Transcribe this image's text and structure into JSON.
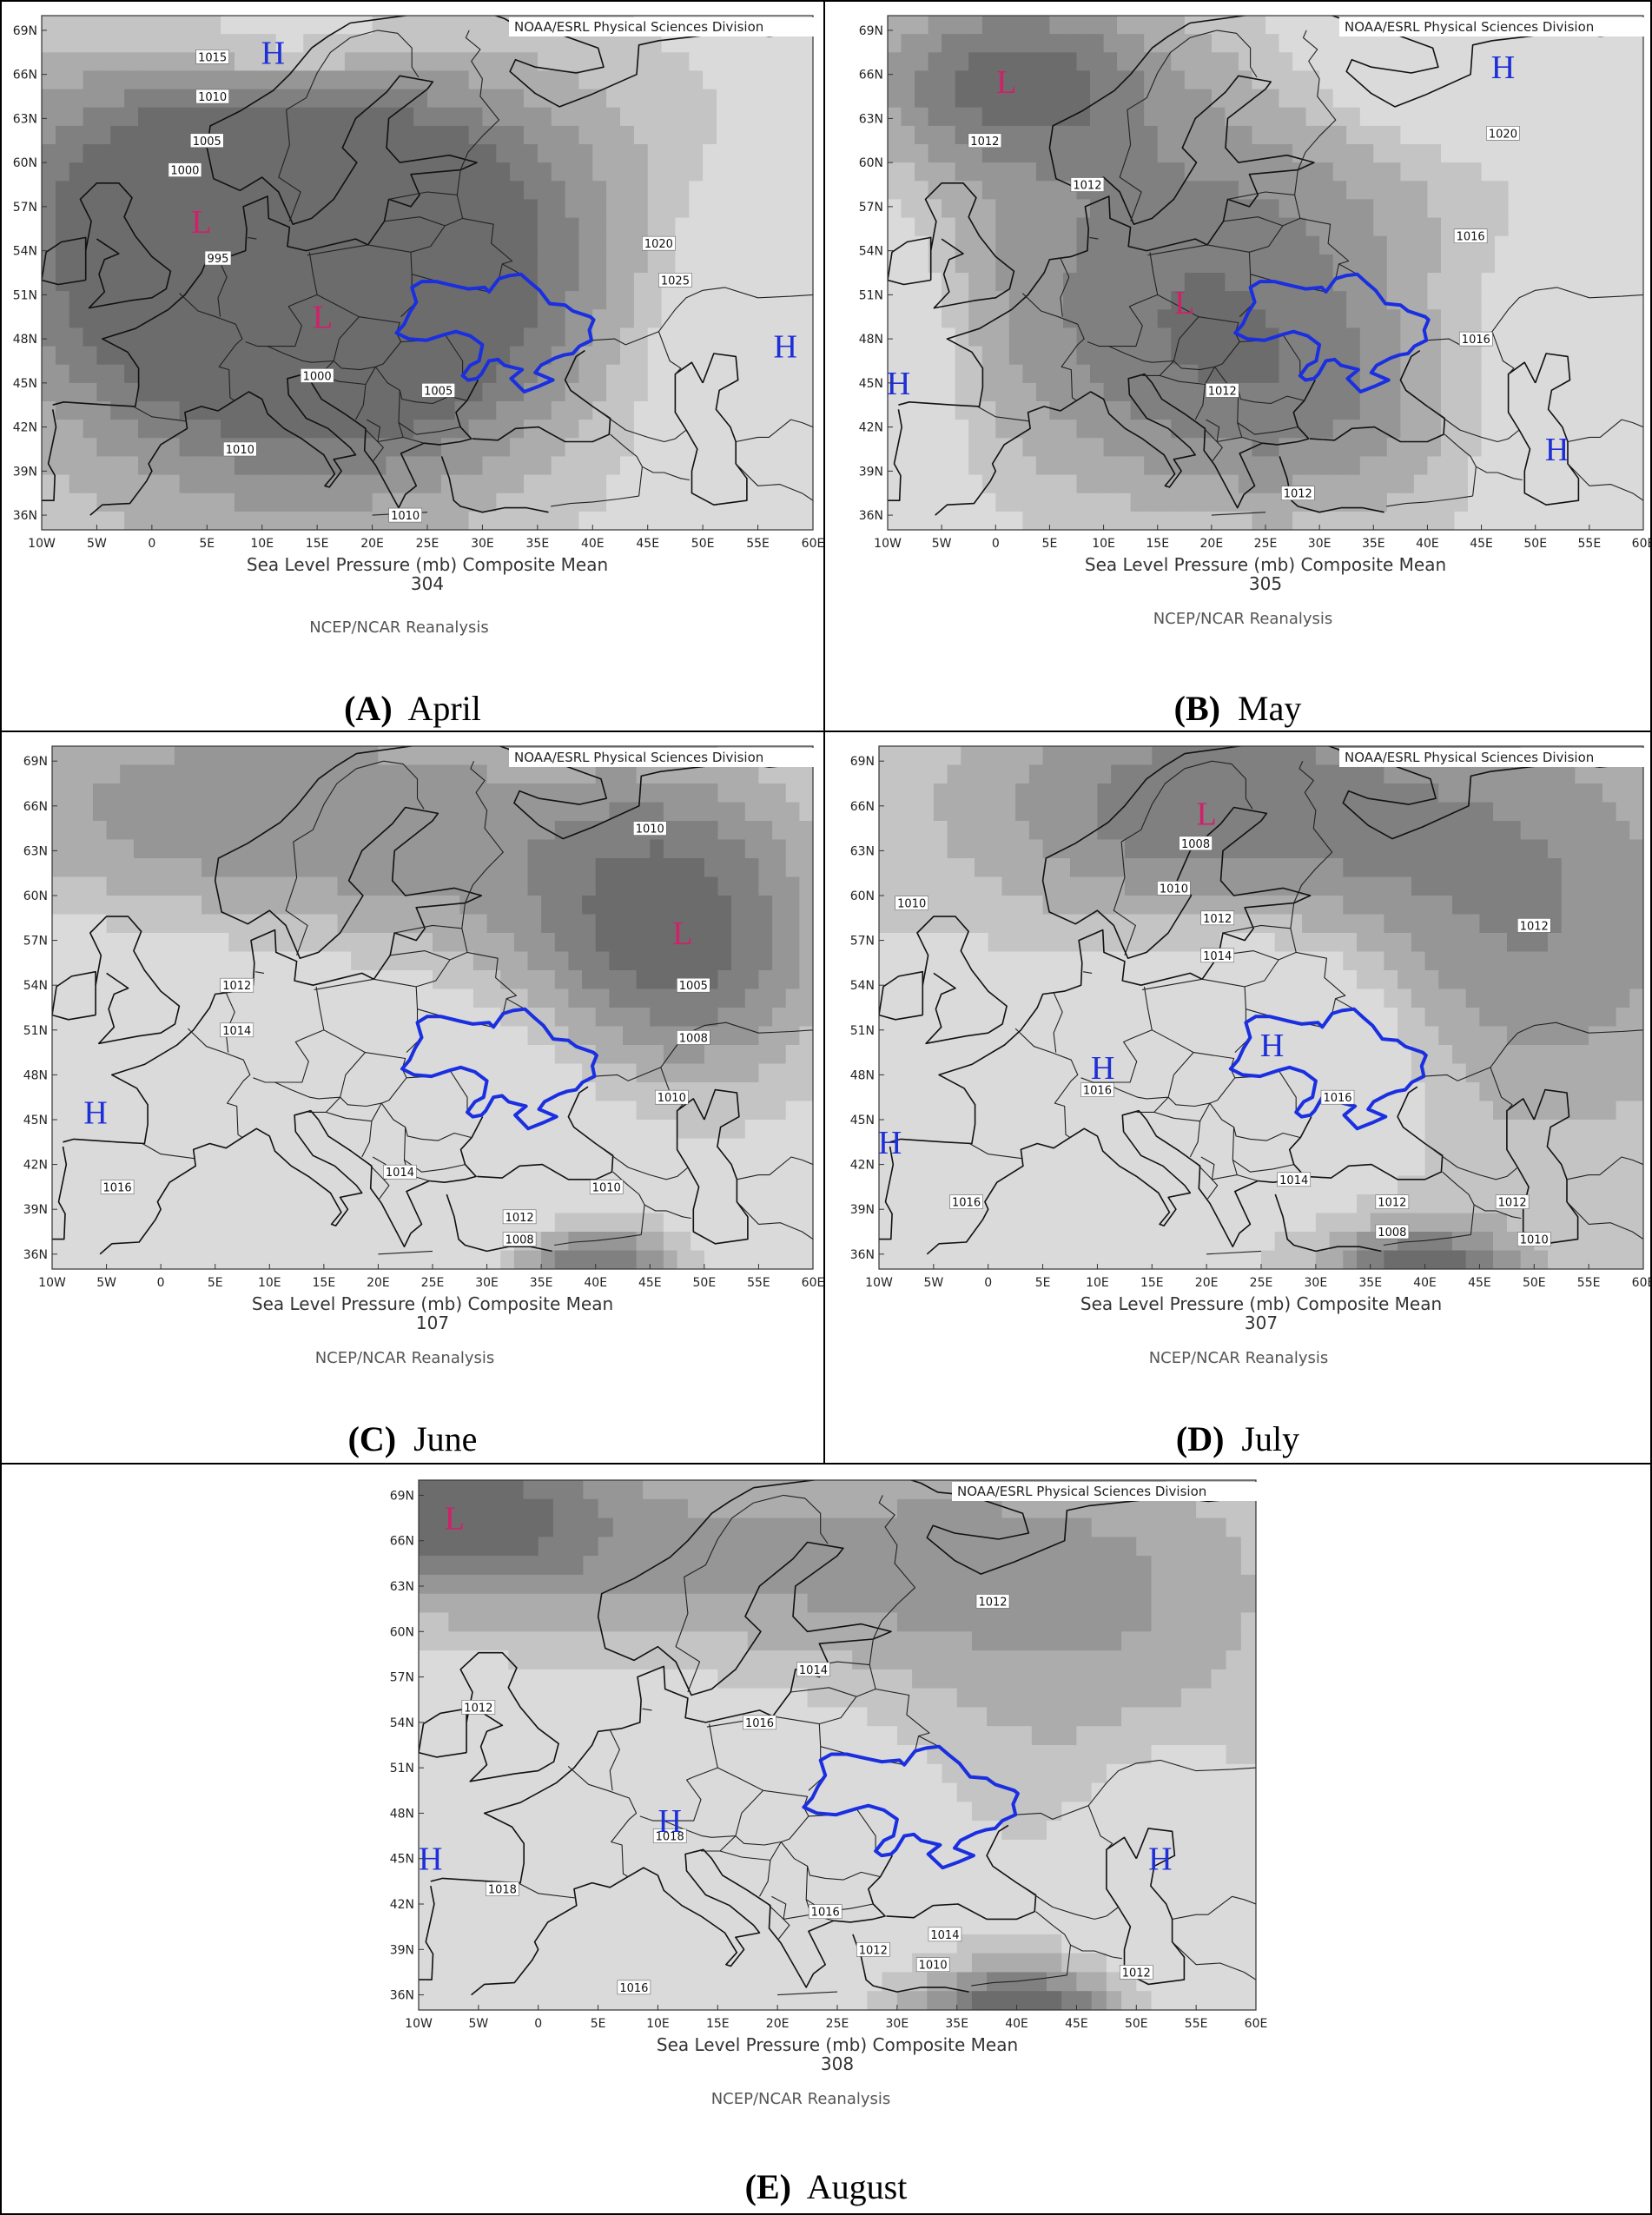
{
  "source_credit": "NOAA/ESRL Physical Sciences Division",
  "axis_title": "Sea Level Pressure (mb) Composite Mean",
  "reanalysis": "NCEP/NCAR Reanalysis",
  "lon_ticks": [
    "10W",
    "5W",
    "0",
    "5E",
    "10E",
    "15E",
    "20E",
    "25E",
    "30E",
    "35E",
    "40E",
    "45E",
    "50E",
    "55E",
    "60E"
  ],
  "lat_ticks": [
    "69N",
    "66N",
    "63N",
    "60N",
    "57N",
    "54N",
    "51N",
    "48N",
    "45N",
    "42N",
    "39N",
    "36N"
  ],
  "colors": {
    "low_marker": "#d1206a",
    "high_marker": "#1d2fd6",
    "ukraine_border": "#1a2fe0"
  },
  "panels": [
    {
      "letter": "(A)",
      "month": "April",
      "number": "304",
      "colorbar": [
        "1002.5",
        "1010",
        "1020",
        "1027.5"
      ],
      "markers": [
        {
          "type": "H",
          "text": "H",
          "lon": 11,
          "lat": 67.5
        },
        {
          "type": "L",
          "text": "L",
          "lon": 4.5,
          "lat": 56
        },
        {
          "type": "L",
          "text": "L",
          "lon": 15.5,
          "lat": 49.5
        },
        {
          "type": "H",
          "text": "H",
          "lon": 57.5,
          "lat": 47.5
        }
      ],
      "contour_labels": [
        {
          "text": "1015",
          "lon": 5.5,
          "lat": 67.2
        },
        {
          "text": "1010",
          "lon": 5.5,
          "lat": 64.5
        },
        {
          "text": "1005",
          "lon": 5,
          "lat": 61.5
        },
        {
          "text": "1000",
          "lon": 3,
          "lat": 59.5
        },
        {
          "text": "995",
          "lon": 6,
          "lat": 53.5
        },
        {
          "text": "1000",
          "lon": 15,
          "lat": 45.5
        },
        {
          "text": "1005",
          "lon": 26,
          "lat": 44.5
        },
        {
          "text": "1010",
          "lon": 8,
          "lat": 40.5
        },
        {
          "text": "1010",
          "lon": 23,
          "lat": 36
        },
        {
          "text": "1020",
          "lon": 46,
          "lat": 54.5
        },
        {
          "text": "1025",
          "lon": 47.5,
          "lat": 52
        }
      ]
    },
    {
      "letter": "(B)",
      "month": "May",
      "number": "305",
      "colorbar": [
        "1010",
        "1014",
        "1018",
        "1022"
      ],
      "markers": [
        {
          "type": "L",
          "text": "L",
          "lon": 1,
          "lat": 65.5
        },
        {
          "type": "H",
          "text": "H",
          "lon": 47,
          "lat": 66.5
        },
        {
          "type": "L",
          "text": "L",
          "lon": 17.5,
          "lat": 50.5
        },
        {
          "type": "H",
          "text": "H",
          "lon": -9,
          "lat": 45
        },
        {
          "type": "H",
          "text": "H",
          "lon": 52,
          "lat": 40.5
        }
      ],
      "contour_labels": [
        {
          "text": "1012",
          "lon": -1,
          "lat": 61.5
        },
        {
          "text": "1012",
          "lon": 8.5,
          "lat": 58.5
        },
        {
          "text": "1020",
          "lon": 47,
          "lat": 62
        },
        {
          "text": "1016",
          "lon": 44,
          "lat": 55
        },
        {
          "text": "1016",
          "lon": 44.5,
          "lat": 48
        },
        {
          "text": "1012",
          "lon": 21,
          "lat": 44.5
        },
        {
          "text": "1012",
          "lon": 28,
          "lat": 37.5
        }
      ]
    },
    {
      "letter": "(C)",
      "month": "June",
      "number": "107",
      "colorbar": [
        "1003",
        "1008",
        "1012",
        "1017"
      ],
      "markers": [
        {
          "type": "L",
          "text": "L",
          "lon": 48,
          "lat": 57.5
        },
        {
          "type": "H",
          "text": "H",
          "lon": -6,
          "lat": 45.5
        }
      ],
      "contour_labels": [
        {
          "text": "1010",
          "lon": 45,
          "lat": 64.5
        },
        {
          "text": "1005",
          "lon": 49,
          "lat": 54
        },
        {
          "text": "1008",
          "lon": 49,
          "lat": 50.5
        },
        {
          "text": "1010",
          "lon": 47,
          "lat": 46.5
        },
        {
          "text": "1012",
          "lon": 7,
          "lat": 54
        },
        {
          "text": "1014",
          "lon": 7,
          "lat": 51
        },
        {
          "text": "1016",
          "lon": -4,
          "lat": 40.5
        },
        {
          "text": "1014",
          "lon": 22,
          "lat": 41.5
        },
        {
          "text": "1012",
          "lon": 33,
          "lat": 38.5
        },
        {
          "text": "1008",
          "lon": 33,
          "lat": 37
        },
        {
          "text": "1010",
          "lon": 41,
          "lat": 40.5
        }
      ]
    },
    {
      "letter": "(D)",
      "month": "July",
      "number": "307",
      "colorbar": [
        "1003",
        "1008",
        "1012",
        "1017"
      ],
      "markers": [
        {
          "type": "L",
          "text": "L",
          "lon": 20,
          "lat": 65.5
        },
        {
          "type": "H",
          "text": "H",
          "lon": 10.5,
          "lat": 48.5
        },
        {
          "type": "H",
          "text": "H",
          "lon": 26,
          "lat": 50
        },
        {
          "type": "H",
          "text": "H",
          "lon": -9,
          "lat": 43.5
        }
      ],
      "contour_labels": [
        {
          "text": "1008",
          "lon": 19,
          "lat": 63.5
        },
        {
          "text": "1010",
          "lon": 17,
          "lat": 60.5
        },
        {
          "text": "1010",
          "lon": -7,
          "lat": 59.5
        },
        {
          "text": "1012",
          "lon": 21,
          "lat": 58.5
        },
        {
          "text": "1014",
          "lon": 21,
          "lat": 56
        },
        {
          "text": "1012",
          "lon": 50,
          "lat": 58
        },
        {
          "text": "1016",
          "lon": 10,
          "lat": 47
        },
        {
          "text": "1016",
          "lon": 32,
          "lat": 46.5
        },
        {
          "text": "1016",
          "lon": -2,
          "lat": 39.5
        },
        {
          "text": "1014",
          "lon": 28,
          "lat": 41
        },
        {
          "text": "1012",
          "lon": 37,
          "lat": 39.5
        },
        {
          "text": "1008",
          "lon": 37,
          "lat": 37.5
        },
        {
          "text": "1012",
          "lon": 48,
          "lat": 39.5
        },
        {
          "text": "1010",
          "lon": 50,
          "lat": 37
        }
      ]
    },
    {
      "letter": "(E)",
      "month": "August",
      "number": "308",
      "colorbar": [
        "1007",
        "1010",
        "1014",
        "1017"
      ],
      "markers": [
        {
          "type": "L",
          "text": "L",
          "lon": -7,
          "lat": 67.5
        },
        {
          "type": "H",
          "text": "H",
          "lon": 11,
          "lat": 47.5
        },
        {
          "type": "H",
          "text": "H",
          "lon": -9,
          "lat": 45
        },
        {
          "type": "H",
          "text": "H",
          "lon": 52,
          "lat": 45
        }
      ],
      "contour_labels": [
        {
          "text": "1012",
          "lon": 38,
          "lat": 62
        },
        {
          "text": "1014",
          "lon": 23,
          "lat": 57.5
        },
        {
          "text": "1016",
          "lon": 18.5,
          "lat": 54
        },
        {
          "text": "1012",
          "lon": -5,
          "lat": 55
        },
        {
          "text": "1018",
          "lon": 11,
          "lat": 46.5
        },
        {
          "text": "1018",
          "lon": -3,
          "lat": 43
        },
        {
          "text": "1016",
          "lon": 24,
          "lat": 41.5
        },
        {
          "text": "1014",
          "lon": 34,
          "lat": 40
        },
        {
          "text": "1012",
          "lon": 28,
          "lat": 39
        },
        {
          "text": "1010",
          "lon": 33,
          "lat": 38
        },
        {
          "text": "1016",
          "lon": 8,
          "lat": 36.5
        },
        {
          "text": "1012",
          "lon": 50,
          "lat": 37.5
        }
      ]
    }
  ]
}
